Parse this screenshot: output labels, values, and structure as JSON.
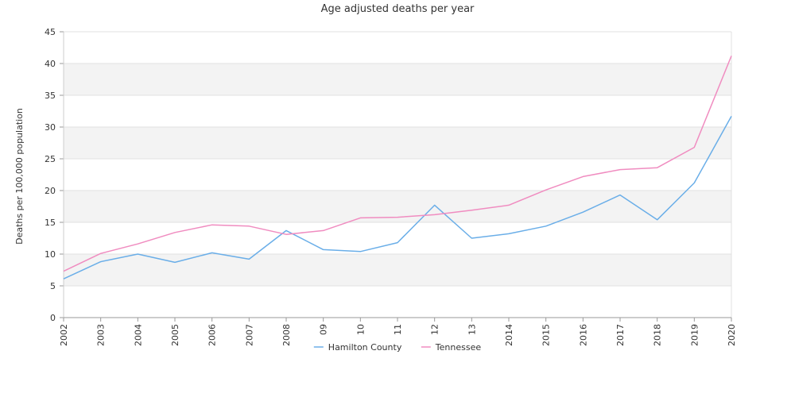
{
  "chart_data": {
    "type": "line",
    "title": "Age adjusted deaths per year",
    "xlabel": "",
    "ylabel": "Deaths per 100,000 population",
    "x": [
      "2002",
      "2003",
      "2004",
      "2005",
      "2006",
      "2007",
      "2008",
      "09",
      "10",
      "11",
      "12",
      "13",
      "2014",
      "2015",
      "2016",
      "2017",
      "2018",
      "2019",
      "2020"
    ],
    "ylim": [
      0,
      45
    ],
    "yticks": [
      0,
      5,
      10,
      15,
      20,
      25,
      30,
      35,
      40,
      45
    ],
    "grid": true,
    "legend_position": "bottom",
    "series": [
      {
        "name": "Hamilton County",
        "color": "#6aaee8",
        "values": [
          6.1,
          8.8,
          10.0,
          8.7,
          10.2,
          9.2,
          13.7,
          10.7,
          10.4,
          11.8,
          17.7,
          12.5,
          13.2,
          14.4,
          16.6,
          19.3,
          15.4,
          21.2,
          31.7
        ]
      },
      {
        "name": "Tennessee",
        "color": "#f08cc0",
        "values": [
          7.3,
          10.1,
          11.6,
          13.4,
          14.6,
          14.4,
          13.1,
          13.7,
          15.7,
          15.8,
          16.2,
          16.9,
          17.7,
          20.1,
          22.2,
          23.3,
          23.6,
          26.8,
          41.2
        ]
      }
    ]
  }
}
